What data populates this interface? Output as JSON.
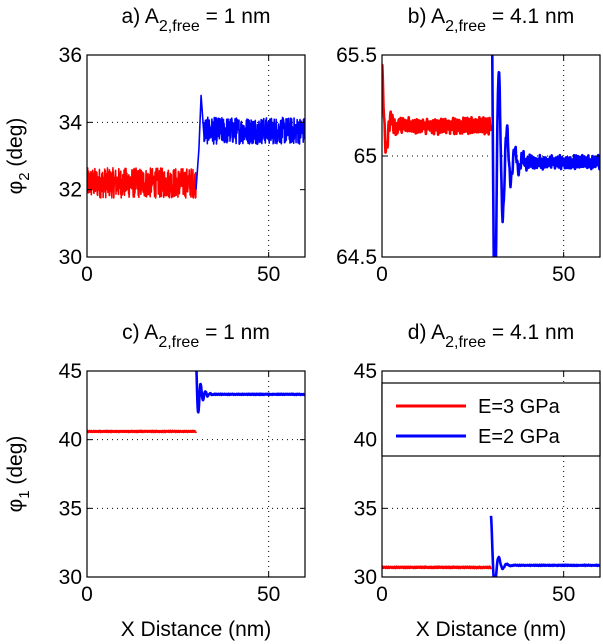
{
  "chart_data": [
    {
      "type": "line",
      "panel": "a",
      "title_prefix": "a) A",
      "title_sub": "2,free",
      "title_suffix": " = 1 nm",
      "xlabel": "",
      "ylabel_main": "φ",
      "ylabel_sub": "2",
      "ylabel_suffix": " (deg)",
      "xlim": [
        0,
        60
      ],
      "ylim": [
        30,
        36
      ],
      "xticks": [
        0,
        50
      ],
      "yticks": [
        30,
        32,
        34,
        36
      ],
      "grid_x": [
        50
      ],
      "grid_y": [
        34
      ],
      "series": [
        {
          "name": "E=3 GPa",
          "color": "#ff0000",
          "x": [
            0,
            30
          ],
          "mean": 32.2,
          "noise": 0.45,
          "noise_kind": "band"
        },
        {
          "name": "E=2 GPa",
          "color": "#0000ff",
          "x": [
            30,
            60
          ],
          "mean": 33.75,
          "noise": 0.4,
          "noise_kind": "band",
          "transient": [
            [
              30,
              32.0
            ],
            [
              30.8,
              33.2
            ],
            [
              31.4,
              34.8
            ],
            [
              32.2,
              33.6
            ]
          ]
        }
      ]
    },
    {
      "type": "line",
      "panel": "b",
      "title_prefix": "b) A",
      "title_sub": "2,free",
      "title_suffix": " = 4.1 nm",
      "xlabel": "",
      "ylabel_main": "",
      "ylabel_sub": "",
      "ylabel_suffix": "",
      "xlim": [
        0,
        60
      ],
      "ylim": [
        64.5,
        65.5
      ],
      "xticks": [
        0,
        50
      ],
      "yticks": [
        64.5,
        65,
        65.5
      ],
      "grid_x": [
        50
      ],
      "grid_y": [
        65
      ],
      "series": [
        {
          "name": "E=3 GPa",
          "color": "#ff0000",
          "x": [
            0,
            30
          ],
          "mean": 65.15,
          "noise": 0.05,
          "noise_kind": "wiggle",
          "ringing": {
            "start": 0,
            "amp": 0.3,
            "decay": 1.2,
            "period": 2.6
          }
        },
        {
          "name": "E=2 GPa",
          "color": "#0000ff",
          "x": [
            30,
            60
          ],
          "mean": 64.97,
          "noise": 0.04,
          "noise_kind": "wiggle",
          "ringing": {
            "start": 30,
            "amp": 1.2,
            "decay": 2.2,
            "period": 2.2
          }
        }
      ]
    },
    {
      "type": "line",
      "panel": "c",
      "title_prefix": "c) A",
      "title_sub": "2,free",
      "title_suffix": " = 1 nm",
      "xlabel": "X Distance (nm)",
      "ylabel_main": "φ",
      "ylabel_sub": "1",
      "ylabel_suffix": " (deg)",
      "xlim": [
        0,
        60
      ],
      "ylim": [
        30,
        45
      ],
      "xticks": [
        0,
        50
      ],
      "yticks": [
        30,
        35,
        40,
        45
      ],
      "grid_x": [
        50
      ],
      "grid_y": [
        35,
        40
      ],
      "series": [
        {
          "name": "E=3 GPa",
          "color": "#ff0000",
          "x": [
            0,
            30
          ],
          "mean": 40.6,
          "noise": 0.05,
          "noise_kind": "wiggle"
        },
        {
          "name": "E=2 GPa",
          "color": "#0000ff",
          "x": [
            30,
            60
          ],
          "mean": 43.3,
          "noise": 0.05,
          "noise_kind": "wiggle",
          "ringing": {
            "start": 30,
            "amp": 2.4,
            "decay": 1.1,
            "period": 1.3
          }
        }
      ]
    },
    {
      "type": "line",
      "panel": "d",
      "title_prefix": "d) A",
      "title_sub": "2,free",
      "title_suffix": " = 4.1 nm",
      "xlabel": "X Distance (nm)",
      "ylabel_main": "",
      "ylabel_sub": "",
      "ylabel_suffix": "",
      "xlim": [
        0,
        60
      ],
      "ylim": [
        30,
        45
      ],
      "xticks": [
        0,
        50
      ],
      "yticks": [
        30,
        35,
        40,
        45
      ],
      "grid_x": [
        50
      ],
      "grid_y": [
        35,
        40
      ],
      "series": [
        {
          "name": "E=3 GPa",
          "color": "#ff0000",
          "x": [
            0,
            30
          ],
          "mean": 30.7,
          "noise": 0.06,
          "noise_kind": "wiggle"
        },
        {
          "name": "E=2 GPa",
          "color": "#0000ff",
          "x": [
            30,
            60
          ],
          "mean": 30.85,
          "noise": 0.05,
          "noise_kind": "wiggle",
          "ringing": {
            "start": 30,
            "amp": 3.6,
            "decay": 1.2,
            "period": 2.2
          }
        }
      ],
      "legend": {
        "placement": "top-right",
        "entries": [
          {
            "label": "E=3 GPa",
            "color": "#ff0000"
          },
          {
            "label": "E=2 GPa",
            "color": "#0000ff"
          }
        ]
      }
    }
  ]
}
